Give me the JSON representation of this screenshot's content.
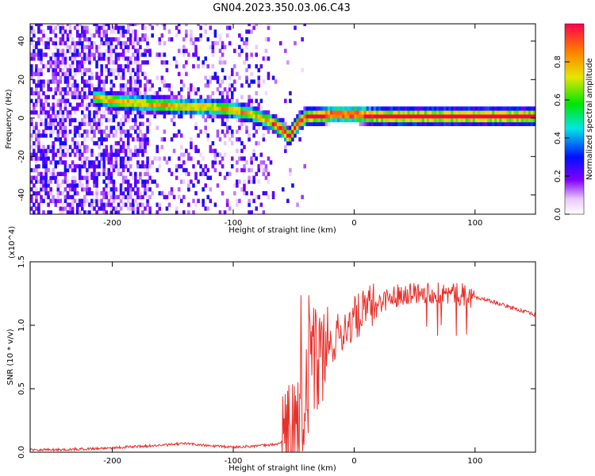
{
  "title": "GN04.2023.350.03.06.C43",
  "chart_data": [
    {
      "type": "heatmap",
      "title": "GN04.2023.350.03.06.C43",
      "xlabel": "Height of straight line (km)",
      "ylabel": "Frequency (Hz)",
      "xlim": [
        -268,
        150
      ],
      "ylim": [
        -50,
        49
      ],
      "xticks": [
        -200,
        -100,
        0,
        100
      ],
      "xtick_labels": [
        "-200",
        "-100",
        "0",
        "100"
      ],
      "yticks": [
        -40,
        -20,
        0,
        20,
        40
      ],
      "ytick_labels": [
        "-40",
        "-20",
        "0",
        "20",
        "40"
      ],
      "grid": false,
      "colorbar": {
        "label": "Normalized spectral amplitude",
        "range": [
          0,
          1
        ],
        "ticks": [
          0.0,
          0.2,
          0.4,
          0.6,
          0.8
        ],
        "tick_labels": [
          "0.0",
          "0.2",
          "0.4",
          "0.6",
          "0.8"
        ],
        "colormap": "rainbow"
      },
      "ridge": {
        "x": [
          -215,
          -200,
          -180,
          -160,
          -140,
          -120,
          -100,
          -85,
          -70,
          -60,
          -55,
          -50,
          -45,
          -40,
          -30,
          -20,
          -10,
          0,
          20,
          50,
          80,
          100,
          150
        ],
        "y": [
          10,
          8,
          7,
          6,
          5,
          5,
          3,
          1,
          -3,
          -7,
          -11,
          -6,
          -2,
          0,
          0,
          1,
          1,
          1,
          0,
          0,
          0,
          0,
          0
        ]
      }
    },
    {
      "type": "line",
      "xlabel": "Height of straight line (km)",
      "ylabel": "SNR (10 * v/v)",
      "multiplier_label": "(x10^4)",
      "xlim": [
        -268,
        150
      ],
      "ylim": [
        0,
        1.5
      ],
      "xticks": [
        -200,
        -100,
        0,
        100
      ],
      "xtick_labels": [
        "-200",
        "-100",
        "0",
        "100"
      ],
      "yticks": [
        0.0,
        0.5,
        1.0,
        1.5
      ],
      "ytick_labels": [
        "0.0",
        "0.5",
        "1.0",
        "1.5"
      ],
      "grid": false,
      "series_color": "#e8302a",
      "series": [
        {
          "x": [
            -268,
            -240,
            -210,
            -190,
            -170,
            -150,
            -140,
            -130,
            -120,
            -100,
            -80,
            -65,
            -55,
            -48,
            -43,
            -38,
            -33,
            -28,
            -22,
            -15,
            -10,
            -5,
            0,
            10,
            20,
            30,
            40,
            50,
            60,
            70,
            80,
            90,
            100,
            110,
            120,
            130,
            140,
            150
          ],
          "y": [
            0.02,
            0.02,
            0.03,
            0.04,
            0.05,
            0.06,
            0.07,
            0.06,
            0.05,
            0.04,
            0.05,
            0.06,
            0.1,
            0.2,
            0.35,
            0.6,
            0.7,
            0.75,
            0.8,
            0.9,
            0.95,
            1.0,
            1.05,
            1.12,
            1.18,
            1.22,
            1.25,
            1.26,
            1.26,
            1.25,
            1.25,
            1.24,
            1.22,
            1.2,
            1.17,
            1.14,
            1.11,
            1.08
          ]
        }
      ]
    }
  ]
}
